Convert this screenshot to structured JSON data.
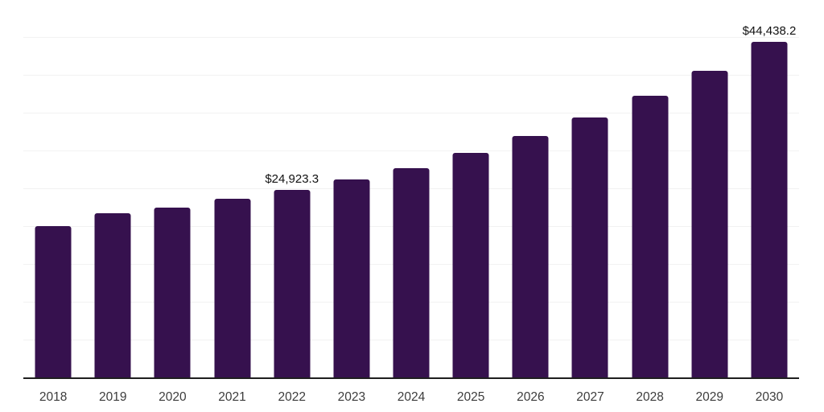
{
  "colors": {
    "background": "#FFFFFF",
    "bar": "#36114E",
    "gridline": "#F2F2F2",
    "axis_line": "#1F1F1F",
    "tick_label": "#3C3C3C",
    "data_label": "#111111"
  },
  "chart_data": {
    "type": "bar",
    "categories": [
      "2018",
      "2019",
      "2020",
      "2021",
      "2022",
      "2023",
      "2024",
      "2025",
      "2026",
      "2027",
      "2028",
      "2029",
      "2030"
    ],
    "values": [
      20100,
      21800,
      22550,
      23720,
      24923.3,
      26280,
      27770,
      29780,
      32060,
      34470,
      37390,
      40690,
      44438.2
    ],
    "data_labels": {
      "2022": "$24,923.3",
      "2030": "$44,438.2"
    },
    "ylim": [
      0,
      50000
    ],
    "ytick_interval": 5000,
    "grid": "horizontal",
    "legend": "none"
  }
}
